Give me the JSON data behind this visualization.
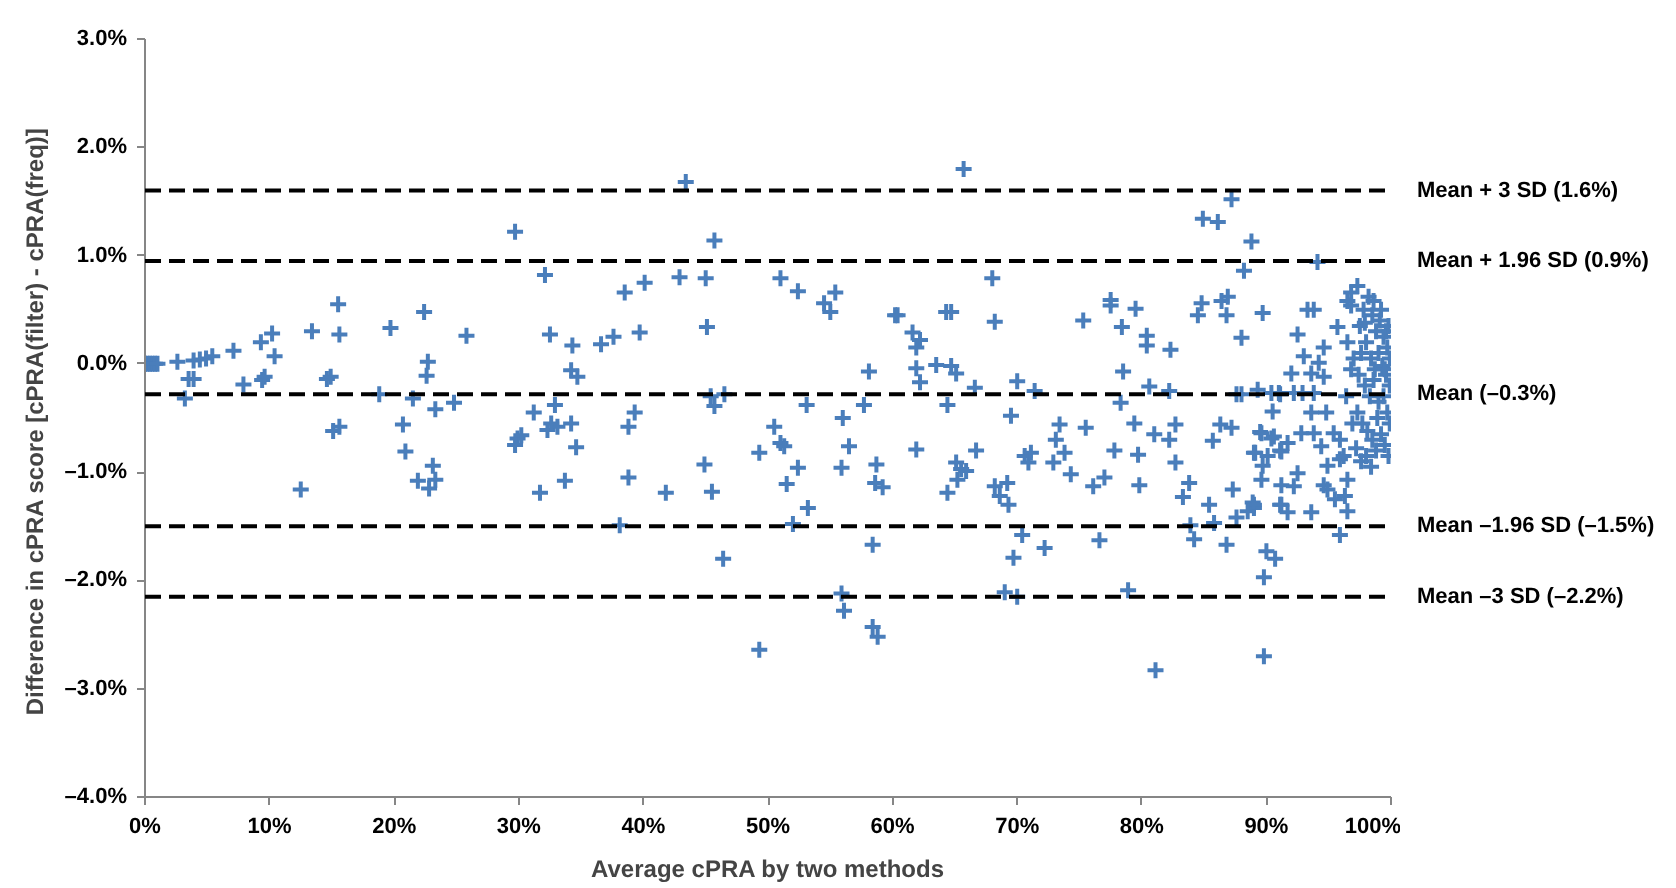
{
  "chart_data": {
    "type": "scatter",
    "xlabel": "Average cPRA by two methods",
    "ylabel": "Difference in cPRA score  [cPRA(filter) - cPRA(freq)]",
    "xlim": [
      0,
      100
    ],
    "xticks": [
      {
        "value": 0,
        "label": "0%"
      },
      {
        "value": 10,
        "label": "10%"
      },
      {
        "value": 20,
        "label": "20%"
      },
      {
        "value": 30,
        "label": "30%"
      },
      {
        "value": 40,
        "label": "40%"
      },
      {
        "value": 50,
        "label": "50%"
      },
      {
        "value": 60,
        "label": "60%"
      },
      {
        "value": 70,
        "label": "70%"
      },
      {
        "value": 80,
        "label": "80%"
      },
      {
        "value": 90,
        "label": "90%"
      },
      {
        "value": 100,
        "label": "100%"
      }
    ],
    "ylim": [
      -4,
      3
    ],
    "yticks": [
      {
        "value": -4,
        "label": "–4.0%"
      },
      {
        "value": -3,
        "label": "–3.0%"
      },
      {
        "value": -2,
        "label": "–2.0%"
      },
      {
        "value": -1,
        "label": "–1.0%"
      },
      {
        "value": 0,
        "label": "0.0%"
      },
      {
        "value": 1,
        "label": "1.0%"
      },
      {
        "value": 2,
        "label": "2.0%"
      },
      {
        "value": 3,
        "label": "3.0%"
      }
    ],
    "grid": false,
    "marker": "cross",
    "series": [
      {
        "color": "#4a7ebb",
        "x": [
          0,
          0.2,
          0.4,
          0.6,
          0.8,
          1.0,
          2.6,
          3.2,
          3.5,
          3.9,
          3.9,
          4.4,
          4.9,
          5.4,
          7.1,
          7.9,
          9.3,
          10.2,
          9.4,
          9.6,
          10.4,
          12.5,
          13.4,
          14.6,
          14.9,
          15.5,
          15.6,
          15.1,
          15.6,
          18.8,
          19.7,
          20.7,
          20.9,
          21.5,
          21.9,
          22.4,
          22.7,
          22.6,
          22.8,
          23.3,
          23.1,
          23.3,
          24.8,
          25.8,
          29.7,
          32.1,
          32.5,
          34.3,
          34.2,
          34.7,
          31.2,
          32.9,
          29.9,
          29.7,
          30.2,
          32.3,
          33.1,
          34.2,
          32.6,
          34.6,
          31.7,
          33.7,
          38.5,
          40.1,
          36.6,
          37.6,
          39.7,
          38.8,
          39.3,
          38.8,
          38.1,
          41.8,
          43.4,
          42.9,
          45.0,
          45.7,
          45.1,
          45.4,
          45.7,
          46.5,
          44.9,
          45.5,
          46.4,
          49.3,
          51.0,
          52.4,
          54.5,
          55.0,
          55.4,
          60.2,
          58.1,
          50.5,
          51.0,
          51.3,
          49.3,
          53.1,
          52.4,
          51.5,
          53.2,
          52.0,
          56.0,
          57.7,
          56.5,
          55.9,
          58.7,
          58.6,
          59.2,
          58.4,
          55.9,
          56.1,
          58.4,
          58.8,
          65.7,
          84.9,
          86.1,
          87.2,
          88.8,
          88.2,
          68.0,
          68.2,
          60.4,
          64.3,
          64.7,
          61.6,
          62.2,
          61.9,
          61.9,
          62.2,
          63.5,
          64.7,
          65.1,
          66.6,
          64.4,
          70.0,
          71.4,
          69.5,
          61.9,
          65.1,
          65.5,
          65.9,
          65.2,
          66.7,
          64.4,
          68.2,
          68.6,
          69.2,
          69.3,
          70.6,
          70.9,
          71.1,
          70.4,
          69.7,
          69.0,
          70.0,
          72.2,
          73.4,
          73.1,
          73.8,
          72.9,
          74.3,
          75.5,
          76.1,
          77.0,
          76.6,
          75.3,
          77.5,
          77.5,
          79.5,
          78.4,
          80.4,
          80.4,
          82.3,
          78.5,
          80.6,
          82.2,
          78.3,
          79.4,
          77.8,
          79.7,
          81.0,
          82.7,
          82.2,
          82.7,
          79.8,
          78.9,
          81.1,
          83.8,
          83.3,
          85.4,
          83.9,
          85.8,
          84.2,
          86.8,
          87.6,
          87.3,
          89.0,
          88.9,
          89.7,
          89.6,
          89.1,
          85.7,
          86.3,
          87.2,
          90.0,
          90.7,
          89.8,
          89.8,
          84.5,
          84.8,
          86.4,
          86.9,
          86.8,
          88.0,
          89.7,
          87.6,
          88.0,
          89.3,
          90.5,
          91.1,
          89.5,
          90.4,
          91.1,
          91.1,
          94.1,
          97.3,
          96.8,
          96.5,
          96.8,
          93.3,
          93.8,
          95.7,
          92.5,
          94.6,
          93.0,
          94.2,
          92.0,
          93.6,
          94.6,
          90.4,
          91.0,
          92.2,
          92.9,
          93.8,
          94.8,
          93.6,
          89.6,
          90.6,
          92.8,
          93.8,
          91.7,
          89.0,
          90.1,
          91.2,
          94.4,
          95.4,
          95.9,
          94.9,
          95.9,
          92.5,
          94.6,
          92.2,
          91.2,
          94.9,
          96.5,
          96.3,
          95.5,
          96.5,
          89.0,
          88.5,
          91.2,
          91.7,
          93.6,
          95.9,
          97.5,
          97.8,
          98.2,
          98.5,
          98.8,
          99.1,
          99.4,
          99.7,
          99.9,
          97.6,
          98.0,
          98.4,
          98.7,
          99.0,
          99.3,
          99.6,
          99.9,
          97.4,
          97.9,
          98.3,
          98.6,
          99.0,
          99.4,
          99.7,
          99.9,
          97.3,
          97.7,
          98.1,
          98.5,
          98.9,
          99.2,
          99.5,
          99.8,
          97.2,
          97.6,
          98.0,
          98.4,
          98.8,
          99.6,
          99.2,
          98.6,
          97.9,
          96.5,
          96.8,
          96.4,
          96.9,
          96.2,
          97.0,
          99.8,
          99.5
        ],
        "values": [
          0,
          0,
          0,
          0,
          0,
          0,
          0.02,
          -0.32,
          -0.14,
          -0.14,
          0.03,
          0.04,
          0.05,
          0.07,
          0.12,
          -0.19,
          0.2,
          0.28,
          -0.15,
          -0.12,
          0.07,
          -1.16,
          0.3,
          -0.14,
          -0.12,
          0.55,
          0.27,
          -0.62,
          -0.58,
          -0.28,
          0.33,
          -0.56,
          -0.81,
          -0.32,
          -1.08,
          0.48,
          0.02,
          -0.11,
          -1.15,
          -0.42,
          -0.94,
          -1.07,
          -0.36,
          0.26,
          1.22,
          0.82,
          0.27,
          0.17,
          -0.06,
          -0.12,
          -0.45,
          -0.38,
          -0.69,
          -0.75,
          -0.66,
          -0.61,
          -0.58,
          -0.55,
          -0.55,
          -0.77,
          -1.19,
          -1.08,
          0.66,
          0.75,
          0.18,
          0.25,
          0.29,
          -0.58,
          -0.45,
          -1.05,
          -1.49,
          -1.19,
          1.68,
          0.8,
          0.79,
          1.14,
          0.34,
          -0.3,
          -0.39,
          -0.28,
          -0.93,
          -1.18,
          -1.8,
          -2.64,
          0.79,
          0.67,
          0.56,
          0.48,
          0.66,
          0.45,
          -0.07,
          -0.58,
          -0.73,
          -0.76,
          -0.82,
          -0.38,
          -0.96,
          -1.11,
          -1.33,
          -1.48,
          -0.5,
          -0.38,
          -0.76,
          -0.96,
          -0.93,
          -1.1,
          -1.14,
          -1.67,
          -2.12,
          -2.28,
          -2.43,
          -2.52,
          1.8,
          1.34,
          1.31,
          1.52,
          1.13,
          0.86,
          0.79,
          0.39,
          0.45,
          0.48,
          0.48,
          0.29,
          0.22,
          0.15,
          -0.04,
          -0.17,
          -0.01,
          -0.02,
          -0.09,
          -0.22,
          -0.38,
          -0.16,
          -0.25,
          -0.48,
          -0.79,
          -0.91,
          -0.97,
          -0.99,
          -1.07,
          -0.8,
          -1.19,
          -1.13,
          -1.22,
          -1.1,
          -1.3,
          -0.85,
          -0.91,
          -0.82,
          -1.58,
          -1.79,
          -2.11,
          -2.15,
          -1.7,
          -0.56,
          -0.7,
          -0.82,
          -0.91,
          -1.02,
          -0.59,
          -1.13,
          -1.05,
          -1.63,
          0.4,
          0.59,
          0.54,
          0.51,
          0.34,
          0.26,
          0.17,
          0.13,
          -0.07,
          -0.21,
          -0.25,
          -0.36,
          -0.55,
          -0.8,
          -0.84,
          -0.65,
          -0.56,
          -0.7,
          -0.91,
          -1.12,
          -2.09,
          -2.83,
          -1.1,
          -1.23,
          -1.3,
          -1.49,
          -1.47,
          -1.62,
          -1.67,
          -1.42,
          -1.16,
          -1.33,
          -1.28,
          -0.94,
          -1.07,
          -0.82,
          -0.71,
          -0.56,
          -0.59,
          -1.73,
          -1.8,
          -1.97,
          -2.7,
          0.45,
          0.56,
          0.58,
          0.62,
          0.45,
          0.24,
          0.47,
          -0.28,
          -0.28,
          -0.24,
          -0.44,
          -0.28,
          -0.63,
          -0.69,
          -0.8,
          -1.3,
          0.94,
          0.72,
          0.66,
          0.58,
          0.54,
          0.5,
          0.5,
          0.34,
          0.27,
          0.15,
          0.07,
          0.01,
          -0.09,
          -0.09,
          -0.12,
          -0.27,
          -0.27,
          -0.27,
          -0.27,
          -0.27,
          -0.45,
          -0.45,
          -0.64,
          -0.67,
          -0.64,
          -0.64,
          -0.73,
          -0.82,
          -0.85,
          -0.81,
          -0.76,
          -0.64,
          -0.7,
          -0.94,
          -0.88,
          -1.01,
          -1.12,
          -1.13,
          -1.12,
          -1.16,
          -1.07,
          -1.22,
          -1.25,
          -1.36,
          -1.3,
          -1.36,
          -1.3,
          -1.37,
          -1.37,
          -1.58,
          0.35,
          0.5,
          0.62,
          0.45,
          0.3,
          0.4,
          0.25,
          0.15,
          0.05,
          0.1,
          0.2,
          0.05,
          -0.05,
          0.1,
          -0.02,
          -0.1,
          -0.2,
          -0.1,
          -0.2,
          -0.3,
          -0.15,
          -0.35,
          -0.3,
          -0.45,
          -0.55,
          -0.45,
          -0.55,
          -0.62,
          -0.7,
          -0.5,
          -0.65,
          -0.75,
          -0.85,
          -0.78,
          -0.9,
          -0.85,
          -0.95,
          -0.8,
          0.3,
          0.5,
          0.58,
          0.38,
          0.2,
          -0.05,
          -0.3,
          -0.55,
          -0.85,
          0.05,
          0.35,
          -0.05
        ]
      }
    ],
    "ref_lines": [
      {
        "axis": "y",
        "value": 1.6,
        "label": "Mean + 3 SD (1.6%)",
        "color": "#000000",
        "line_style": "dashed"
      },
      {
        "axis": "y",
        "value": 0.95,
        "label": "Mean + 1.96 SD (0.9%)",
        "color": "#000000",
        "line_style": "dashed"
      },
      {
        "axis": "y",
        "value": -0.28,
        "label": "Mean (–0.3%)",
        "color": "#000000",
        "line_style": "dashed"
      },
      {
        "axis": "y",
        "value": -1.5,
        "label": "Mean –1.96 SD (–1.5%)",
        "color": "#000000",
        "line_style": "dashed"
      },
      {
        "axis": "y",
        "value": -2.15,
        "label": "Mean –3 SD (–2.2%)",
        "color": "#000000",
        "line_style": "dashed"
      }
    ]
  }
}
